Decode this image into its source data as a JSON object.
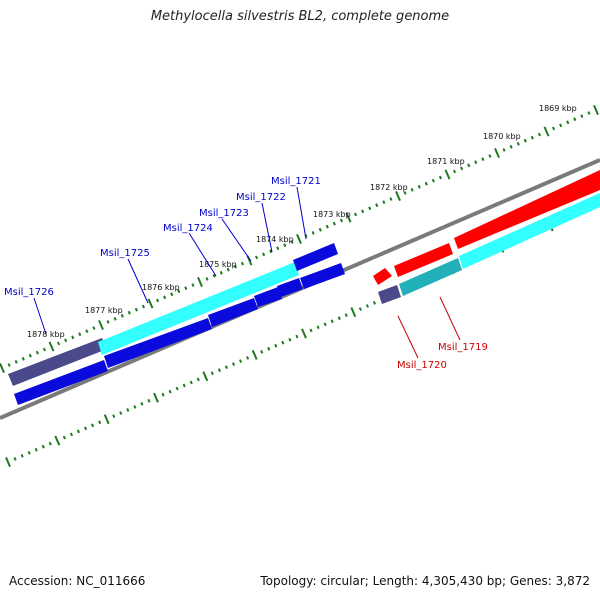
{
  "title": "Methylocella silvestris BL2, complete genome",
  "footer": {
    "accession": "Accession: NC_011666",
    "topology": "Topology: circular; Length: 4,305,430 bp; Genes: 3,872"
  },
  "colors": {
    "backbone": "#7a7a7a",
    "tick": "#1f7a1f",
    "minus_strand_label": "#0000cc",
    "plus_strand_label": "#cc0000",
    "cds_blue": "#0a0adc",
    "rna_cyan": "#33ffff",
    "dark_purple": "#4a4a8a",
    "cds_red": "#ff0000",
    "teal": "#22b0b8"
  },
  "kbp_labels": [
    "1869 kbp",
    "1870 kbp",
    "1871 kbp",
    "1872 kbp",
    "1873 kbp",
    "1874 kbp",
    "1875 kbp",
    "1876 kbp",
    "1877 kbp",
    "1878 kbp"
  ],
  "gene_labels": {
    "minus": [
      "Msil_1726",
      "Msil_1725",
      "Msil_1724",
      "Msil_1723",
      "Msil_1722",
      "Msil_1721"
    ],
    "plus": [
      "Msil_1720",
      "Msil_1719"
    ]
  }
}
